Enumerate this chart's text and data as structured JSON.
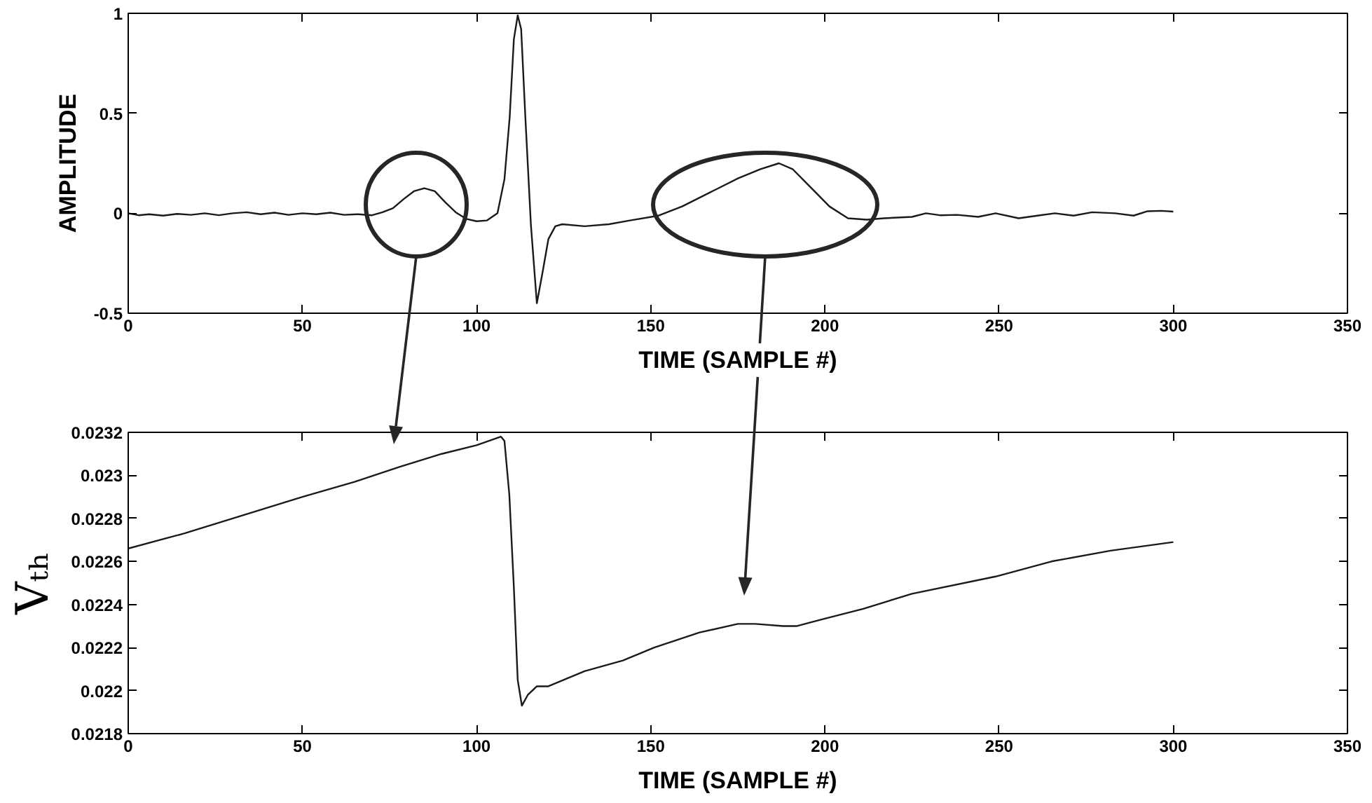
{
  "chart_data": [
    {
      "type": "line",
      "xlabel": "TIME (SAMPLE #)",
      "ylabel": "AMPLITUDE",
      "color": "#1a1a1a",
      "x": [
        0,
        3,
        6,
        10,
        14,
        18,
        22,
        26,
        30,
        34,
        38,
        42,
        46,
        50,
        54,
        58,
        62,
        66,
        70,
        73,
        76,
        79,
        82,
        85,
        88,
        91,
        94,
        97,
        100,
        103,
        106,
        108,
        109.5,
        110.7,
        111.8,
        112.8,
        114,
        115.6,
        117.3,
        119,
        120.6,
        122.6,
        124.6,
        131,
        138,
        144,
        152,
        159,
        167,
        175,
        181.5,
        186.8,
        190.7,
        196,
        201.3,
        206.6,
        212,
        217,
        225,
        229,
        233,
        238,
        244,
        249,
        255.6,
        261,
        266,
        271.4,
        276.7,
        283.3,
        288.6,
        292.6,
        296.6,
        300
      ],
      "values": [
        0.0,
        -0.01,
        -0.005,
        -0.012,
        -0.003,
        -0.008,
        0.0,
        -0.01,
        0.0,
        0.005,
        -0.005,
        0.003,
        -0.008,
        0.0,
        -0.005,
        0.003,
        -0.008,
        -0.005,
        -0.01,
        0.005,
        0.025,
        0.07,
        0.11,
        0.125,
        0.11,
        0.055,
        0.005,
        -0.028,
        -0.04,
        -0.036,
        0.0,
        0.17,
        0.48,
        0.87,
        0.99,
        0.92,
        0.48,
        -0.06,
        -0.45,
        -0.29,
        -0.13,
        -0.065,
        -0.055,
        -0.065,
        -0.055,
        -0.036,
        -0.013,
        0.034,
        0.104,
        0.174,
        0.221,
        0.25,
        0.221,
        0.128,
        0.034,
        -0.025,
        -0.032,
        -0.025,
        -0.018,
        0.0,
        -0.01,
        -0.008,
        -0.018,
        0.0,
        -0.025,
        -0.012,
        0.0,
        -0.012,
        0.005,
        0.0,
        -0.012,
        0.01,
        0.012,
        0.008
      ],
      "xlim": [
        0,
        350
      ],
      "xticks": [
        0,
        50,
        100,
        150,
        200,
        250,
        300,
        350
      ],
      "ylim": [
        -0.5,
        1
      ],
      "yticks": [
        -0.5,
        0,
        0.5,
        1
      ]
    },
    {
      "type": "line",
      "xlabel": "TIME (SAMPLE #)",
      "ylabel": "Vₜₕ",
      "color": "#1a1a1a",
      "x": [
        0,
        16,
        30,
        50,
        65,
        78,
        90,
        100,
        107,
        108,
        109.4,
        110.7,
        111.8,
        113,
        114.7,
        117.3,
        120.6,
        131,
        142,
        151,
        164,
        175,
        180,
        188,
        192,
        199,
        211,
        225,
        249,
        265,
        282,
        300
      ],
      "values": [
        0.02266,
        0.02273,
        0.0228,
        0.0229,
        0.02297,
        0.02304,
        0.0231,
        0.02314,
        0.02318,
        0.02316,
        0.02291,
        0.02248,
        0.02205,
        0.02193,
        0.02198,
        0.02202,
        0.02202,
        0.02209,
        0.02214,
        0.0222,
        0.02227,
        0.02231,
        0.02231,
        0.0223,
        0.0223,
        0.02233,
        0.02238,
        0.02245,
        0.02253,
        0.0226,
        0.02265,
        0.02269
      ],
      "xlim": [
        0,
        350
      ],
      "xticks": [
        0,
        50,
        100,
        150,
        200,
        250,
        300,
        350
      ],
      "ylim": [
        0.0218,
        0.0232
      ],
      "yticks": [
        0.0218,
        0.022,
        0.0222,
        0.0224,
        0.0226,
        0.0228,
        0.023,
        0.0232
      ]
    }
  ]
}
